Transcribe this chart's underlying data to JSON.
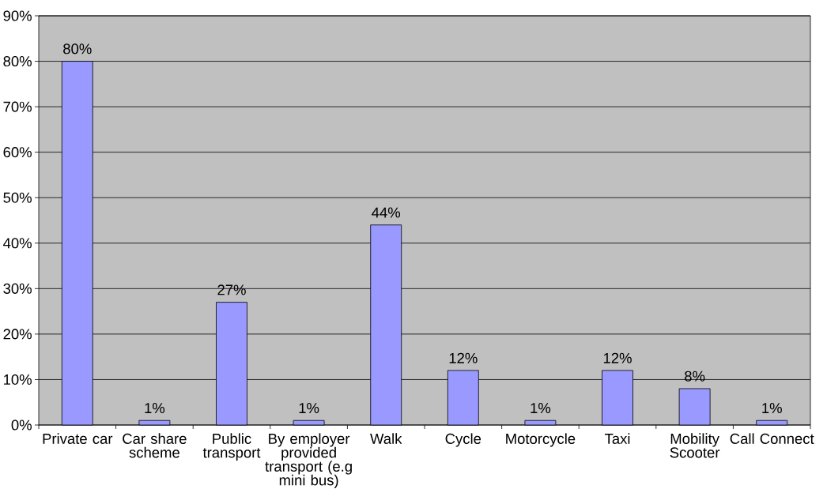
{
  "chart_data": {
    "type": "bar",
    "categories": [
      "Private car",
      "Car share scheme",
      "Public transport",
      "By employer provided transport (e.g mini bus)",
      "Walk",
      "Cycle",
      "Motorcycle",
      "Taxi",
      "Mobility Scooter",
      "Call Connect"
    ],
    "values": [
      80,
      1,
      27,
      1,
      44,
      12,
      1,
      12,
      8,
      1
    ],
    "value_labels": [
      "80%",
      "1%",
      "27%",
      "1%",
      "44%",
      "12%",
      "1%",
      "12%",
      "8%",
      "1%"
    ],
    "color": "#9999ff",
    "ylim": [
      0,
      90
    ],
    "yticks": [
      {
        "value": 0,
        "label": "0%"
      },
      {
        "value": 10,
        "label": "10%"
      },
      {
        "value": 20,
        "label": "20%"
      },
      {
        "value": 30,
        "label": "30%"
      },
      {
        "value": 40,
        "label": "40%"
      },
      {
        "value": 50,
        "label": "50%"
      },
      {
        "value": 60,
        "label": "60%"
      },
      {
        "value": 70,
        "label": "70%"
      },
      {
        "value": 80,
        "label": "80%"
      },
      {
        "value": 90,
        "label": "90%"
      }
    ],
    "grid": "y"
  }
}
